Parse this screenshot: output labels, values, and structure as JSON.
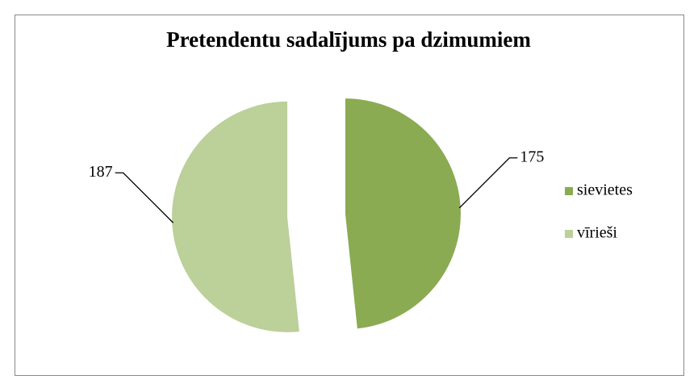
{
  "chart_data": {
    "type": "pie",
    "title": "Pretendentu sadalījums pa dzimumiem",
    "categories": [
      "sievietes",
      "vīrieši"
    ],
    "values": [
      175,
      187
    ],
    "colors": [
      "#8aab52",
      "#bcd09a"
    ],
    "legend": "right"
  }
}
